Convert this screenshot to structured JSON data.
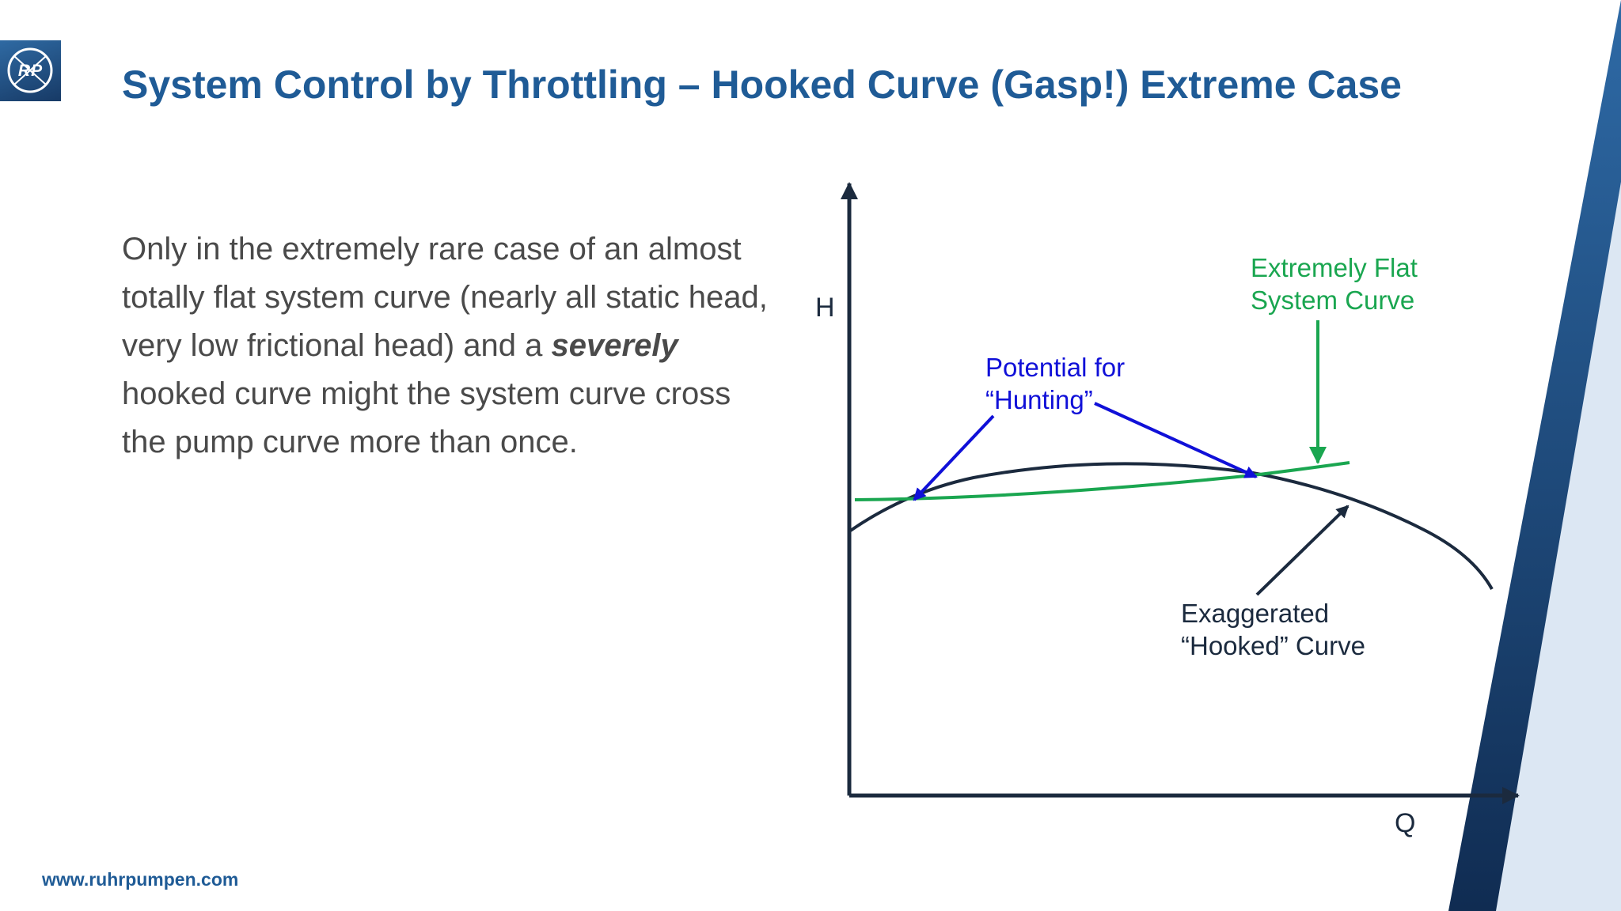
{
  "logo": {
    "text": "RP"
  },
  "title": "System Control by Throttling – Hooked Curve (Gasp!) Extreme Case",
  "body": {
    "line_before_emphasis": "Only in the extremely rare case of an almost totally flat system curve (nearly all static head, very low frictional head) and a",
    "emphasis": "severely",
    "line_after_emphasis": "hooked curve might the system curve cross the pump curve more than once."
  },
  "diagram": {
    "y_axis_label": "H",
    "x_axis_label": "Q",
    "label_flat_line1": "Extremely Flat",
    "label_flat_line2": "System Curve",
    "label_hunting_line1": "Potential for",
    "label_hunting_line2": "“Hunting”",
    "label_hooked_line1": "Exaggerated",
    "label_hooked_line2": "“Hooked” Curve",
    "colors": {
      "axis": "#1b2a3e",
      "pump_curve": "#1b2a3e",
      "system_curve": "#1aa650",
      "hunting": "#1010d8"
    }
  },
  "footer": "www.ruhrpumpen.com",
  "colors": {
    "title": "#1f5b96",
    "accent_dark": "#173a66",
    "accent_light": "#dce7f3"
  }
}
